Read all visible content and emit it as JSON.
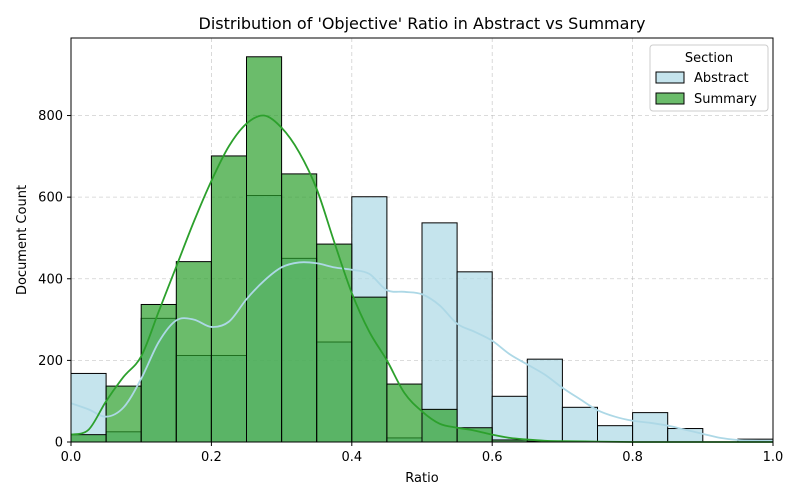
{
  "chart_data": {
    "type": "histogram",
    "title": "Distribution of 'Objective' Ratio in Abstract vs Summary",
    "xlabel": "Ratio",
    "ylabel": "Document Count",
    "xlim": [
      0,
      1
    ],
    "ylim": [
      0,
      990
    ],
    "bin_width": 0.05,
    "bin_starts": [
      0.0,
      0.05,
      0.1,
      0.15,
      0.2,
      0.25,
      0.3,
      0.35,
      0.4,
      0.45,
      0.5,
      0.55,
      0.6,
      0.65,
      0.7,
      0.75,
      0.8,
      0.85,
      0.9,
      0.95
    ],
    "x_ticks": [
      0.0,
      0.2,
      0.4,
      0.6,
      0.8,
      1.0
    ],
    "x_tick_labels": [
      "0.0",
      "0.2",
      "0.4",
      "0.6",
      "0.8",
      "1.0"
    ],
    "y_ticks": [
      0,
      200,
      400,
      600,
      800
    ],
    "y_tick_labels": [
      "0",
      "200",
      "400",
      "600",
      "800"
    ],
    "grid": true,
    "legend": {
      "title": "Section",
      "placement": "top-right"
    },
    "series": [
      {
        "name": "Abstract",
        "color": "#add8e6",
        "values": [
          168,
          25,
          303,
          212,
          212,
          604,
          450,
          245,
          601,
          10,
          537,
          417,
          112,
          203,
          85,
          40,
          72,
          33,
          0,
          7
        ],
        "kde": {
          "x": [
            0.0,
            0.025,
            0.05,
            0.075,
            0.1,
            0.125,
            0.15,
            0.175,
            0.2,
            0.225,
            0.25,
            0.275,
            0.3,
            0.325,
            0.35,
            0.375,
            0.4,
            0.425,
            0.45,
            0.475,
            0.5,
            0.525,
            0.55,
            0.575,
            0.6,
            0.625,
            0.65,
            0.675,
            0.7,
            0.725,
            0.75,
            0.775,
            0.8,
            0.825,
            0.85,
            0.875,
            0.9,
            0.925,
            0.95,
            0.975,
            1.0
          ],
          "y": [
            95,
            80,
            62,
            85,
            155,
            245,
            298,
            300,
            282,
            295,
            350,
            395,
            428,
            440,
            438,
            428,
            422,
            412,
            372,
            368,
            362,
            335,
            290,
            270,
            248,
            215,
            190,
            165,
            133,
            105,
            78,
            62,
            52,
            47,
            40,
            30,
            20,
            10,
            5,
            3,
            2
          ]
        }
      },
      {
        "name": "Summary",
        "color": "#2ca02c",
        "values": [
          18,
          137,
          337,
          442,
          701,
          944,
          657,
          485,
          355,
          142,
          80,
          35,
          5,
          2,
          0,
          0,
          0,
          0,
          0,
          0
        ],
        "kde": {
          "x": [
            0.0,
            0.025,
            0.05,
            0.075,
            0.1,
            0.125,
            0.15,
            0.175,
            0.2,
            0.225,
            0.25,
            0.275,
            0.3,
            0.325,
            0.35,
            0.375,
            0.4,
            0.425,
            0.45,
            0.475,
            0.5,
            0.525,
            0.55,
            0.575,
            0.6,
            0.625,
            0.65,
            0.675,
            0.7,
            0.75,
            0.8,
            0.85,
            0.9,
            0.95,
            1.0
          ],
          "y": [
            18,
            30,
            100,
            160,
            210,
            320,
            430,
            540,
            640,
            725,
            780,
            800,
            770,
            710,
            620,
            490,
            365,
            270,
            200,
            120,
            75,
            45,
            35,
            28,
            18,
            10,
            6,
            3,
            2,
            1,
            0,
            0,
            0,
            0,
            0
          ]
        }
      }
    ]
  }
}
